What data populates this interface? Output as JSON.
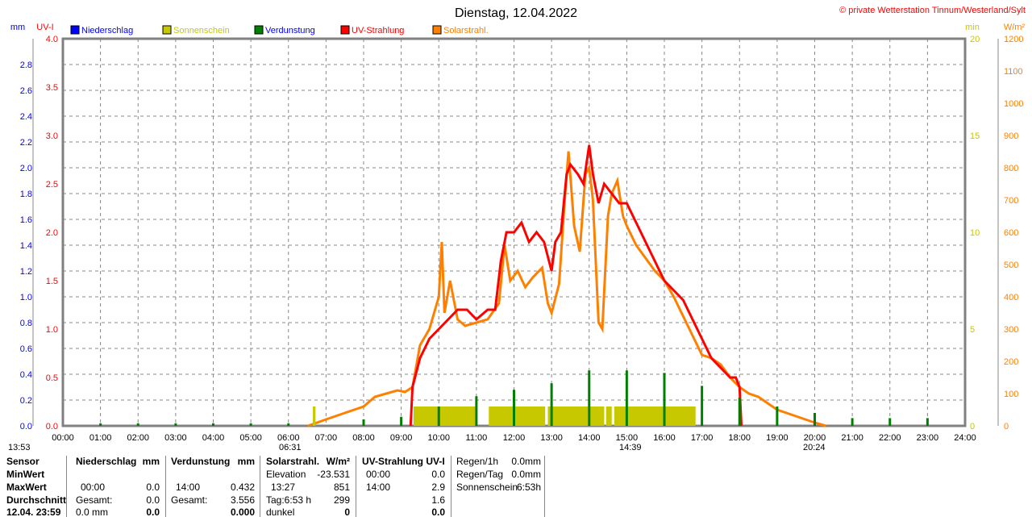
{
  "title": "Dienstag, 12.04.2022",
  "copyright": "© private Wetterstation Tinnum/Westerland/Sylt",
  "chart_data": {
    "type": "line",
    "title": "Dienstag, 12.04.2022",
    "xlabel": "",
    "xlim": [
      0,
      24
    ],
    "x_ticks": [
      "00:00",
      "01:00",
      "02:00",
      "03:00",
      "04:00",
      "05:00",
      "06:00",
      "07:00",
      "08:00",
      "09:00",
      "10:00",
      "11:00",
      "12:00",
      "13:00",
      "14:00",
      "15:00",
      "16:00",
      "17:00",
      "18:00",
      "19:00",
      "20:00",
      "21:00",
      "22:00",
      "23:00",
      "24:00"
    ],
    "axes": {
      "mm": {
        "label": "mm",
        "range": [
          0,
          3
        ],
        "ticks": [
          "0.0",
          "0.2",
          "0.4",
          "0.6",
          "0.8",
          "1.0",
          "1.2",
          "1.4",
          "1.6",
          "1.8",
          "2.0",
          "2.2",
          "2.4",
          "2.6",
          "2.8"
        ],
        "color": "#0000ff"
      },
      "uv": {
        "label": "UV-I",
        "range": [
          0,
          4
        ],
        "ticks": [
          "0.0",
          "0.5",
          "1.0",
          "1.5",
          "2.0",
          "2.5",
          "3.0",
          "3.5",
          "4.0"
        ],
        "color": "#ff0000"
      },
      "min": {
        "label": "min",
        "range": [
          0,
          20
        ],
        "ticks": [
          "0",
          "5",
          "10",
          "15",
          "20"
        ],
        "color": "#c8c800"
      },
      "wm2": {
        "label": "W/m²",
        "range": [
          0,
          1200
        ],
        "ticks": [
          "0",
          "100",
          "200",
          "300",
          "400",
          "500",
          "600",
          "700",
          "800",
          "900",
          "1000",
          "1100",
          "1200"
        ],
        "color": "#ff8000"
      }
    },
    "legend": [
      {
        "name": "Niederschlag",
        "color": "#0000ff"
      },
      {
        "name": "Sonnenschein",
        "color": "#c8c800"
      },
      {
        "name": "Verdunstung",
        "color": "#008000"
      },
      {
        "name": "UV-Strahlung",
        "color": "#ff0000"
      },
      {
        "name": "Solarstrahl.",
        "color": "#ff8000"
      }
    ],
    "series": [
      {
        "name": "Solarstrahl.",
        "axis": "wm2",
        "color": "#ff8000",
        "x": [
          6.52,
          7.0,
          7.5,
          8.0,
          8.3,
          8.6,
          8.9,
          9.1,
          9.3,
          9.5,
          9.75,
          10.0,
          10.08,
          10.15,
          10.3,
          10.5,
          10.7,
          11.0,
          11.3,
          11.6,
          11.75,
          11.9,
          12.1,
          12.3,
          12.5,
          12.75,
          12.9,
          13.0,
          13.2,
          13.35,
          13.45,
          13.6,
          13.75,
          13.9,
          14.0,
          14.1,
          14.25,
          14.35,
          14.5,
          14.6,
          14.75,
          14.9,
          15.0,
          15.25,
          15.5,
          15.75,
          16.0,
          16.25,
          16.5,
          16.75,
          17.0,
          17.25,
          17.5,
          17.75,
          18.0,
          18.25,
          18.5,
          18.75,
          19.0,
          19.5,
          20.0,
          20.3
        ],
        "y": [
          0,
          20,
          40,
          60,
          90,
          100,
          110,
          105,
          120,
          250,
          300,
          400,
          570,
          350,
          450,
          330,
          310,
          320,
          330,
          380,
          560,
          450,
          480,
          430,
          460,
          490,
          380,
          350,
          440,
          700,
          851,
          620,
          540,
          780,
          800,
          700,
          320,
          300,
          650,
          720,
          760,
          650,
          620,
          560,
          520,
          480,
          450,
          400,
          340,
          280,
          220,
          210,
          190,
          150,
          120,
          100,
          90,
          70,
          50,
          30,
          10,
          0
        ]
      },
      {
        "name": "UV-Strahlung",
        "axis": "uv",
        "color": "#ff0000",
        "x": [
          9.25,
          9.3,
          9.5,
          9.75,
          10.0,
          10.25,
          10.5,
          10.75,
          11.0,
          11.3,
          11.5,
          11.65,
          11.8,
          12.0,
          12.2,
          12.4,
          12.6,
          12.8,
          13.0,
          13.1,
          13.25,
          13.4,
          13.5,
          13.7,
          13.85,
          14.0,
          14.1,
          14.25,
          14.4,
          14.6,
          14.8,
          15.0,
          15.25,
          15.5,
          15.75,
          16.0,
          16.25,
          16.5,
          16.75,
          17.0,
          17.25,
          17.5,
          17.75,
          17.9,
          18.0,
          18.05
        ],
        "y": [
          0,
          0.4,
          0.7,
          0.9,
          1.0,
          1.1,
          1.2,
          1.2,
          1.1,
          1.2,
          1.2,
          1.7,
          2.0,
          2.0,
          2.1,
          1.9,
          2.0,
          1.9,
          1.6,
          1.9,
          2.0,
          2.6,
          2.7,
          2.6,
          2.5,
          2.9,
          2.6,
          2.3,
          2.5,
          2.4,
          2.3,
          2.3,
          2.1,
          1.9,
          1.7,
          1.5,
          1.4,
          1.3,
          1.1,
          0.9,
          0.7,
          0.6,
          0.5,
          0.5,
          0.4,
          0
        ]
      },
      {
        "name": "Sonnenschein",
        "axis": "min",
        "type": "bar",
        "color": "#c8c800",
        "intervals": [
          [
            6.65,
            6.72
          ],
          [
            9.33,
            11.0
          ],
          [
            11.33,
            12.83
          ],
          [
            12.9,
            14.4
          ],
          [
            14.45,
            14.6
          ],
          [
            14.67,
            16.83
          ]
        ],
        "y": 1
      },
      {
        "name": "Verdunstung",
        "axis": "mm",
        "type": "spike",
        "color": "#008000",
        "x": [
          1,
          2,
          3,
          4,
          5,
          6,
          8,
          9,
          10,
          11,
          12,
          13,
          14,
          15,
          16,
          17,
          18,
          19,
          20,
          21,
          22,
          23
        ],
        "y": [
          0.02,
          0.02,
          0.02,
          0.02,
          0.02,
          0.02,
          0.05,
          0.07,
          0.15,
          0.23,
          0.28,
          0.33,
          0.43,
          0.43,
          0.41,
          0.31,
          0.22,
          0.15,
          0.1,
          0.06,
          0.06,
          0.06
        ]
      }
    ]
  },
  "sun": {
    "sunrise": "06:31",
    "sunset": "20:24",
    "noon": "13:53",
    "marker": "14:39"
  },
  "table": {
    "rows": [
      "Sensor",
      "MinWert",
      "MaxWert",
      "Durchschnitt",
      "12.04. 23:59"
    ],
    "nieder": {
      "head": "Niederschlag",
      "unit": "mm",
      "max_time": "00:00",
      "max": "0.0",
      "gesamt_l": "Gesamt:",
      "gesamt": "0.0",
      "cur_l": "0.0 mm",
      "cur": "0.0"
    },
    "verd": {
      "head": "Verdunstung",
      "unit": "mm",
      "max_time": "14:00",
      "max": "0.432",
      "gesamt_l": "Gesamt:",
      "gesamt": "3.556",
      "cur": "0.000"
    },
    "solar": {
      "head": "Solarstrahl.",
      "unit": "W/m²",
      "elev_l": "Elevation",
      "elev": "-23.531",
      "max_time": "13:27",
      "max": "851",
      "tag_l": "Tag:6:53 h",
      "avg": "299",
      "cur_l": "dunkel",
      "cur": "0"
    },
    "uv": {
      "head": "UV-Strahlung UV-I",
      "min_time": "00:00",
      "min": "0.0",
      "max_time": "14:00",
      "max": "2.9",
      "avg": "1.6",
      "cur": "0.0"
    },
    "info": {
      "r1l": "Regen/1h",
      "r1": "0.0mm",
      "r2l": "Regen/Tag",
      "r2": "0.0mm",
      "r3l": "Sonnenschein",
      "r3": "6:53h"
    }
  }
}
